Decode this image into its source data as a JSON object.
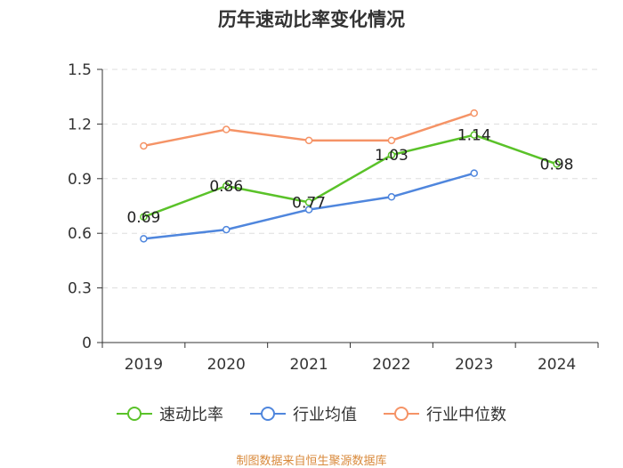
{
  "chart_data": {
    "type": "line",
    "title": "历年速动比率变化情况",
    "categories": [
      "2019",
      "2020",
      "2021",
      "2022",
      "2023",
      "2024"
    ],
    "y_ticks": [
      "0",
      "0.3",
      "0.6",
      "0.9",
      "1.2",
      "1.5"
    ],
    "ylim": [
      0,
      1.5
    ],
    "xlabel": "",
    "ylabel": "",
    "grid": true,
    "legend_position": "bottom",
    "series": [
      {
        "name": "速动比率",
        "color": "#5ac229",
        "values": [
          0.69,
          0.86,
          0.77,
          1.03,
          1.14,
          0.98
        ],
        "labels": [
          "0.69",
          "0.86",
          "0.77",
          "1.03",
          "1.14",
          "0.98"
        ]
      },
      {
        "name": "行业均值",
        "color": "#4f86dd",
        "values": [
          0.57,
          0.62,
          0.73,
          0.8,
          0.93,
          null
        ]
      },
      {
        "name": "行业中位数",
        "color": "#f59366",
        "values": [
          1.08,
          1.17,
          1.11,
          1.11,
          1.26,
          null
        ]
      }
    ]
  },
  "source": "制图数据来自恒生聚源数据库"
}
